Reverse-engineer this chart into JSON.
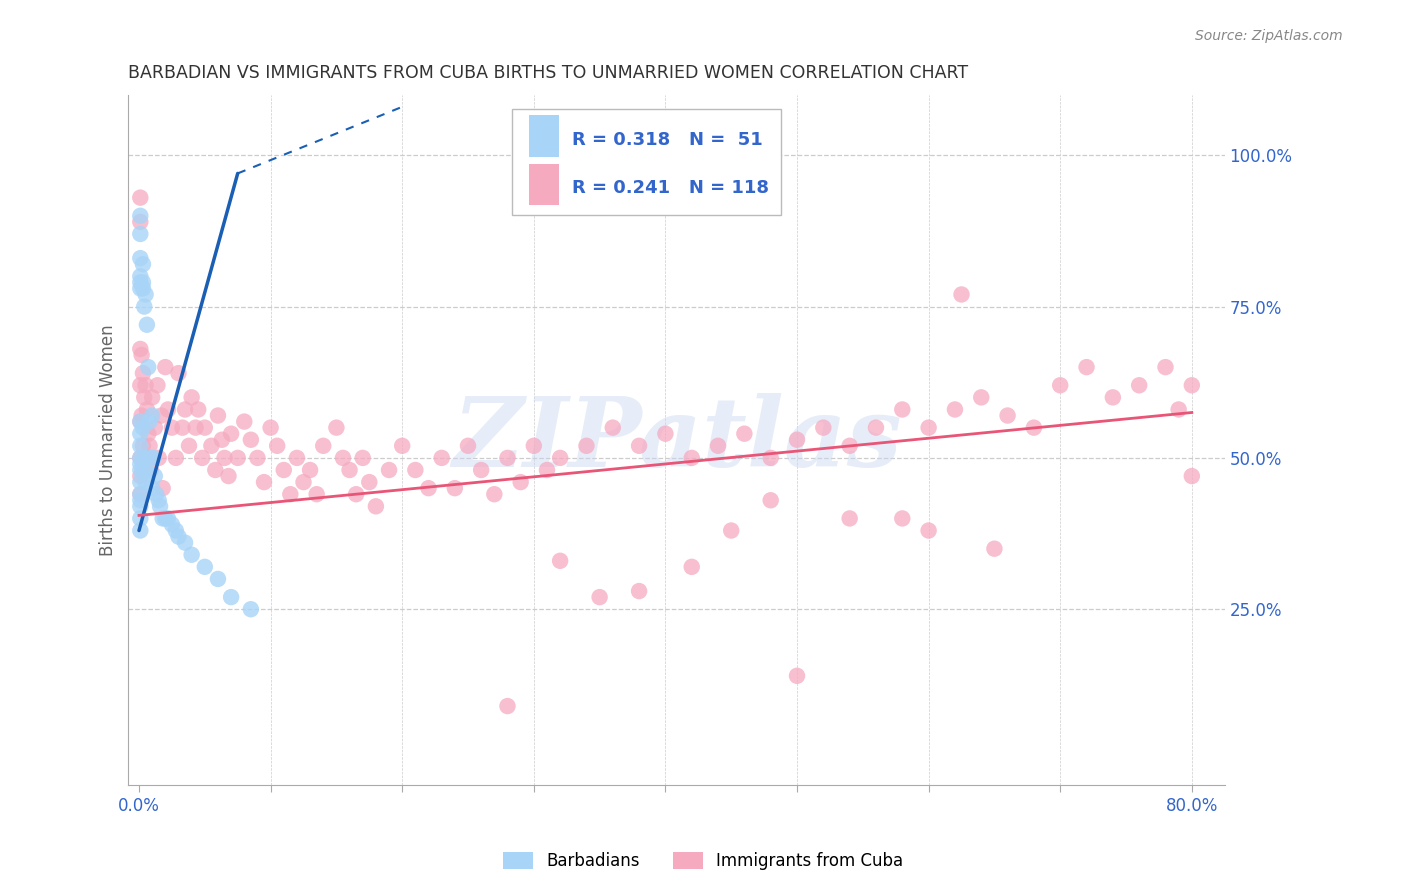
{
  "title": "BARBADIAN VS IMMIGRANTS FROM CUBA BIRTHS TO UNMARRIED WOMEN CORRELATION CHART",
  "source": "Source: ZipAtlas.com",
  "ylabel": "Births to Unmarried Women",
  "xlim_min": -0.008,
  "xlim_max": 0.825,
  "ylim_min": -0.04,
  "ylim_max": 1.1,
  "legend1_r": "0.318",
  "legend1_n": "51",
  "legend2_r": "0.241",
  "legend2_n": "118",
  "barbadian_color": "#a8d4f7",
  "cuba_color": "#f5aac0",
  "trend_barbadian_color": "#1a5fb4",
  "trend_cuba_color": "#e85577",
  "watermark": "ZIPatlas",
  "watermark_color": "#c8d8f0",
  "title_color": "#333333",
  "axis_label_color": "#666666",
  "right_tick_color": "#3366cc",
  "xtick_color": "#3366cc",
  "background_color": "#ffffff",
  "grid_color": "#cccccc",
  "legend_text_color": "#3366cc",
  "barbadian_x": [
    0.001,
    0.001,
    0.001,
    0.001,
    0.001,
    0.001,
    0.001,
    0.001,
    0.001,
    0.001,
    0.001,
    0.001,
    0.001,
    0.001,
    0.001,
    0.001,
    0.001,
    0.001,
    0.003,
    0.003,
    0.003,
    0.003,
    0.003,
    0.004,
    0.004,
    0.005,
    0.005,
    0.006,
    0.006,
    0.007,
    0.008,
    0.009,
    0.01,
    0.01,
    0.011,
    0.012,
    0.013,
    0.015,
    0.016,
    0.018,
    0.02,
    0.022,
    0.025,
    0.028,
    0.03,
    0.035,
    0.04,
    0.05,
    0.06,
    0.07,
    0.085
  ],
  "barbadian_y": [
    0.9,
    0.87,
    0.83,
    0.8,
    0.79,
    0.78,
    0.56,
    0.54,
    0.52,
    0.5,
    0.49,
    0.48,
    0.46,
    0.44,
    0.43,
    0.42,
    0.4,
    0.38,
    0.82,
    0.79,
    0.78,
    0.55,
    0.48,
    0.75,
    0.5,
    0.77,
    0.46,
    0.72,
    0.48,
    0.65,
    0.56,
    0.5,
    0.57,
    0.45,
    0.5,
    0.47,
    0.44,
    0.43,
    0.42,
    0.4,
    0.4,
    0.4,
    0.39,
    0.38,
    0.37,
    0.36,
    0.34,
    0.32,
    0.3,
    0.27,
    0.25
  ],
  "cuba_x": [
    0.001,
    0.001,
    0.001,
    0.001,
    0.001,
    0.001,
    0.001,
    0.001,
    0.002,
    0.002,
    0.003,
    0.003,
    0.004,
    0.004,
    0.005,
    0.005,
    0.006,
    0.007,
    0.008,
    0.009,
    0.01,
    0.012,
    0.014,
    0.015,
    0.017,
    0.018,
    0.02,
    0.022,
    0.025,
    0.028,
    0.03,
    0.033,
    0.035,
    0.038,
    0.04,
    0.043,
    0.045,
    0.048,
    0.05,
    0.055,
    0.058,
    0.06,
    0.063,
    0.065,
    0.068,
    0.07,
    0.075,
    0.08,
    0.085,
    0.09,
    0.095,
    0.1,
    0.105,
    0.11,
    0.115,
    0.12,
    0.125,
    0.13,
    0.135,
    0.14,
    0.15,
    0.155,
    0.16,
    0.165,
    0.17,
    0.175,
    0.18,
    0.19,
    0.2,
    0.21,
    0.22,
    0.23,
    0.24,
    0.25,
    0.26,
    0.27,
    0.28,
    0.29,
    0.3,
    0.31,
    0.32,
    0.34,
    0.36,
    0.38,
    0.4,
    0.42,
    0.44,
    0.46,
    0.48,
    0.5,
    0.52,
    0.54,
    0.56,
    0.58,
    0.6,
    0.62,
    0.64,
    0.66,
    0.68,
    0.7,
    0.72,
    0.74,
    0.76,
    0.78,
    0.79,
    0.8,
    0.8,
    0.625,
    0.35,
    0.45,
    0.5,
    0.32,
    0.28,
    0.42,
    0.38,
    0.48,
    0.54,
    0.58,
    0.6,
    0.65
  ],
  "cuba_y": [
    0.93,
    0.89,
    0.68,
    0.62,
    0.56,
    0.5,
    0.47,
    0.44,
    0.67,
    0.57,
    0.64,
    0.52,
    0.6,
    0.48,
    0.62,
    0.5,
    0.58,
    0.54,
    0.52,
    0.48,
    0.6,
    0.55,
    0.62,
    0.5,
    0.57,
    0.45,
    0.65,
    0.58,
    0.55,
    0.5,
    0.64,
    0.55,
    0.58,
    0.52,
    0.6,
    0.55,
    0.58,
    0.5,
    0.55,
    0.52,
    0.48,
    0.57,
    0.53,
    0.5,
    0.47,
    0.54,
    0.5,
    0.56,
    0.53,
    0.5,
    0.46,
    0.55,
    0.52,
    0.48,
    0.44,
    0.5,
    0.46,
    0.48,
    0.44,
    0.52,
    0.55,
    0.5,
    0.48,
    0.44,
    0.5,
    0.46,
    0.42,
    0.48,
    0.52,
    0.48,
    0.45,
    0.5,
    0.45,
    0.52,
    0.48,
    0.44,
    0.5,
    0.46,
    0.52,
    0.48,
    0.5,
    0.52,
    0.55,
    0.52,
    0.54,
    0.5,
    0.52,
    0.54,
    0.5,
    0.53,
    0.55,
    0.52,
    0.55,
    0.58,
    0.55,
    0.58,
    0.6,
    0.57,
    0.55,
    0.62,
    0.65,
    0.6,
    0.62,
    0.65,
    0.58,
    0.62,
    0.47,
    0.77,
    0.27,
    0.38,
    0.14,
    0.33,
    0.09,
    0.32,
    0.28,
    0.43,
    0.4,
    0.4,
    0.38,
    0.35
  ],
  "barb_trend_x0": 0.0,
  "barb_trend_y0": 0.38,
  "barb_trend_x1": 0.075,
  "barb_trend_y1": 0.97,
  "barb_trend_dashed_x0": 0.075,
  "barb_trend_dashed_y0": 0.97,
  "barb_trend_dashed_x1": 0.2,
  "barb_trend_dashed_y1": 1.08,
  "cuba_trend_x0": 0.0,
  "cuba_trend_y0": 0.405,
  "cuba_trend_x1": 0.8,
  "cuba_trend_y1": 0.575
}
